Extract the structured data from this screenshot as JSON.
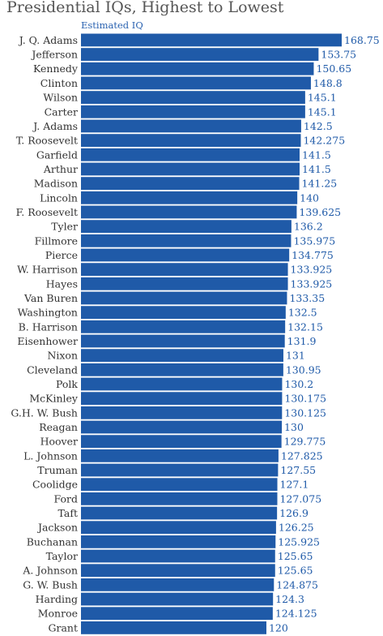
{
  "chart_data": {
    "type": "bar",
    "orientation": "horizontal",
    "title": "Presidential IQs, Highest to Lowest",
    "legend": "Estimated IQ",
    "series": [
      {
        "name": "Estimated IQ",
        "color": "#1f5aa8"
      }
    ],
    "categories": [
      "J. Q. Adams",
      "Jefferson",
      "Kennedy",
      "Clinton",
      "Wilson",
      "Carter",
      "J. Adams",
      "T. Roosevelt",
      "Garfield",
      "Arthur",
      "Madison",
      "Lincoln",
      "F. Roosevelt",
      "Tyler",
      "Fillmore",
      "Pierce",
      "W. Harrison",
      "Hayes",
      "Van Buren",
      "Washington",
      "B. Harrison",
      "Eisenhower",
      "Nixon",
      "Cleveland",
      "Polk",
      "McKinley",
      "G.H. W. Bush",
      "Reagan",
      "Hoover",
      "L. Johnson",
      "Truman",
      "Coolidge",
      "Ford",
      "Taft",
      "Jackson",
      "Buchanan",
      "Taylor",
      "A. Johnson",
      "G. W. Bush",
      "Harding",
      "Monroe",
      "Grant"
    ],
    "values": [
      168.75,
      153.75,
      150.65,
      148.8,
      145.1,
      145.1,
      142.5,
      142.275,
      141.5,
      141.5,
      141.25,
      140,
      139.625,
      136.2,
      135.975,
      134.775,
      133.925,
      133.925,
      133.35,
      132.5,
      132.15,
      131.9,
      131,
      130.95,
      130.2,
      130.175,
      130.125,
      130,
      129.775,
      127.825,
      127.55,
      127.1,
      127.075,
      126.9,
      126.25,
      125.925,
      125.65,
      125.65,
      124.875,
      124.3,
      124.125,
      120
    ],
    "value_labels": [
      "168.75",
      "153.75",
      "150.65",
      "148.8",
      "145.1",
      "145.1",
      "142.5",
      "142.275",
      "141.5",
      "141.5",
      "141.25",
      "140",
      "139.625",
      "136.2",
      "135.975",
      "134.775",
      "133.925",
      "133.925",
      "133.35",
      "132.5",
      "132.15",
      "131.9",
      "131",
      "130.95",
      "130.2",
      "130.175",
      "130.125",
      "130",
      "129.775",
      "127.825",
      "127.55",
      "127.1",
      "127.075",
      "126.9",
      "126.25",
      "125.925",
      "125.65",
      "125.65",
      "124.875",
      "124.3",
      "124.125",
      "120"
    ],
    "xlim": [
      0,
      168.75
    ],
    "grid": false
  }
}
